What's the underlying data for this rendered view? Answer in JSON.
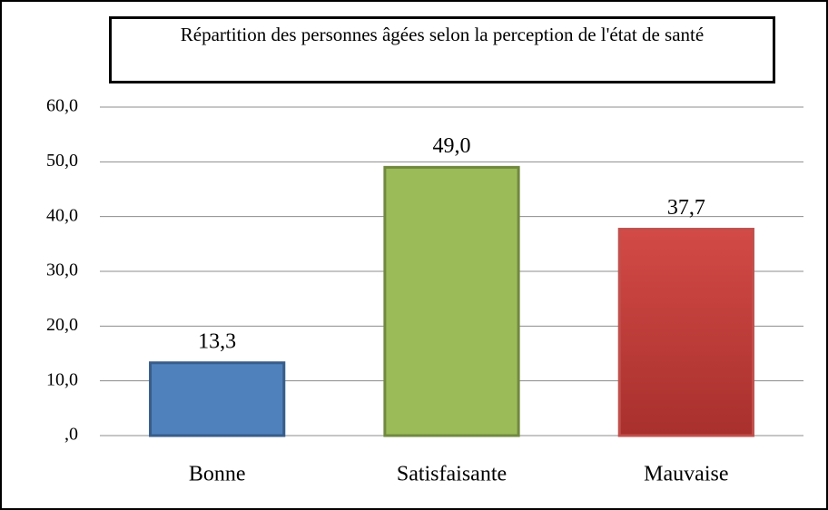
{
  "chart_data": {
    "type": "bar",
    "title": "Répartition des personnes âgées selon la perception de l'état de santé",
    "categories": [
      "Bonne",
      "Satisfaisante",
      "Mauvaise"
    ],
    "values": [
      13.3,
      49.0,
      37.7
    ],
    "value_labels": [
      "13,3",
      "49,0",
      "37,7"
    ],
    "colors": [
      "#4f81bd",
      "#9bbb59",
      "#c0504d"
    ],
    "edgecolors": [
      "#385d8a",
      "#71893f",
      "#c0504d"
    ],
    "ylim": [
      0,
      60
    ],
    "yticks": [
      {
        "value": 0,
        "label": ",0"
      },
      {
        "value": 10,
        "label": "10,0"
      },
      {
        "value": 20,
        "label": "20,0"
      },
      {
        "value": 30,
        "label": "30,0"
      },
      {
        "value": 40,
        "label": "40,0"
      },
      {
        "value": 50,
        "label": "50,0"
      },
      {
        "value": 60,
        "label": "60,0"
      }
    ],
    "grid": true
  }
}
